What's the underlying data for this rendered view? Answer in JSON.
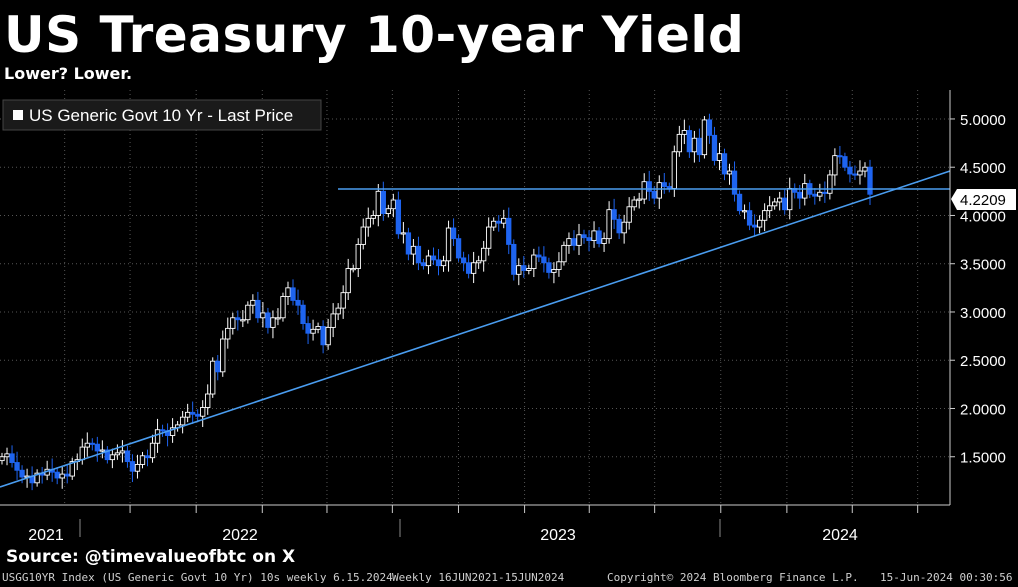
{
  "title": "US Treasury 10-year Yield",
  "subtitle": "Lower? Lower.",
  "source": "Source: @timevalueofbtc on X",
  "footer": {
    "ticker": "USGG10YR Index (US Generic Govt 10 Yr) 10s weekly 6.15.2024",
    "range": "Weekly 16JUN2021-15JUN2024",
    "copyright": "Copyright© 2024 Bloomberg Finance L.P.",
    "timestamp": "15-Jun-2024 00:30:56"
  },
  "colors": {
    "background": "#000000",
    "up_candle": "#ffffff",
    "down_candle": "#1e64f0",
    "line": "#4a9df0",
    "grid": "#555555"
  },
  "chart_data": {
    "type": "candlestick",
    "legend": "US Generic Govt 10 Yr - Last Price",
    "legend_position": "top-left",
    "grid": true,
    "ylim": [
      1.0,
      5.3
    ],
    "xlim": [
      "2021-01-01",
      "2024-08-15"
    ],
    "yticks": [
      1.5,
      2.0,
      2.5,
      3.0,
      3.5,
      4.0,
      4.5,
      5.0
    ],
    "ytick_labels": [
      "1.5000",
      "2.0000",
      "2.5000",
      "3.0000",
      "3.5000",
      "4.0000",
      "4.5000",
      "5.0000"
    ],
    "xtick_labels": [
      {
        "label": "2021",
        "date": "2021-06-01"
      },
      {
        "label": "2022",
        "date": "2022-01-01"
      },
      {
        "label": "2023",
        "date": "2023-01-01"
      },
      {
        "label": "2024",
        "date": "2024-01-01"
      }
    ],
    "last_value": "4.2209",
    "closes": [
      1.5,
      1.53,
      1.44,
      1.36,
      1.29,
      1.3,
      1.23,
      1.33,
      1.31,
      1.37,
      1.34,
      1.28,
      1.32,
      1.3,
      1.45,
      1.47,
      1.6,
      1.64,
      1.63,
      1.56,
      1.57,
      1.47,
      1.52,
      1.54,
      1.56,
      1.45,
      1.35,
      1.42,
      1.51,
      1.49,
      1.64,
      1.78,
      1.77,
      1.72,
      1.8,
      1.83,
      1.91,
      1.96,
      1.94,
      1.92,
      2.01,
      2.15,
      2.49,
      2.38,
      2.72,
      2.83,
      2.94,
      2.92,
      2.92,
      3.07,
      3.12,
      2.94,
      2.99,
      2.84,
      2.94,
      2.94,
      3.16,
      3.25,
      3.12,
      3.07,
      2.88,
      2.78,
      2.82,
      2.85,
      2.66,
      2.84,
      2.98,
      3.04,
      3.2,
      3.45,
      3.45,
      3.7,
      3.88,
      3.97,
      4.0,
      4.25,
      4.02,
      4.07,
      4.16,
      3.81,
      3.82,
      3.6,
      3.68,
      3.51,
      3.48,
      3.58,
      3.54,
      3.48,
      3.53,
      3.87,
      3.76,
      3.56,
      3.51,
      3.4,
      3.51,
      3.53,
      3.66,
      3.88,
      3.94,
      3.92,
      3.97,
      3.7,
      3.39,
      3.48,
      3.43,
      3.45,
      3.59,
      3.57,
      3.51,
      3.41,
      3.44,
      3.52,
      3.69,
      3.76,
      3.69,
      3.8,
      3.77,
      3.74,
      3.84,
      3.71,
      3.76,
      4.06,
      3.96,
      3.82,
      3.93,
      4.09,
      4.16,
      4.17,
      4.35,
      4.25,
      4.18,
      4.34,
      4.3,
      4.28,
      4.66,
      4.84,
      4.88,
      4.66,
      4.8,
      4.63,
      4.99,
      4.83,
      4.57,
      4.64,
      4.43,
      4.46,
      4.22,
      4.05,
      4.05,
      3.9,
      3.88,
      3.95,
      4.05,
      4.1,
      4.14,
      4.18,
      4.06,
      4.28,
      4.24,
      4.18,
      4.33,
      4.22,
      4.2,
      4.24,
      4.23,
      4.42,
      4.62,
      4.61,
      4.5,
      4.43,
      4.42,
      4.46,
      4.5,
      4.22
    ]
  }
}
